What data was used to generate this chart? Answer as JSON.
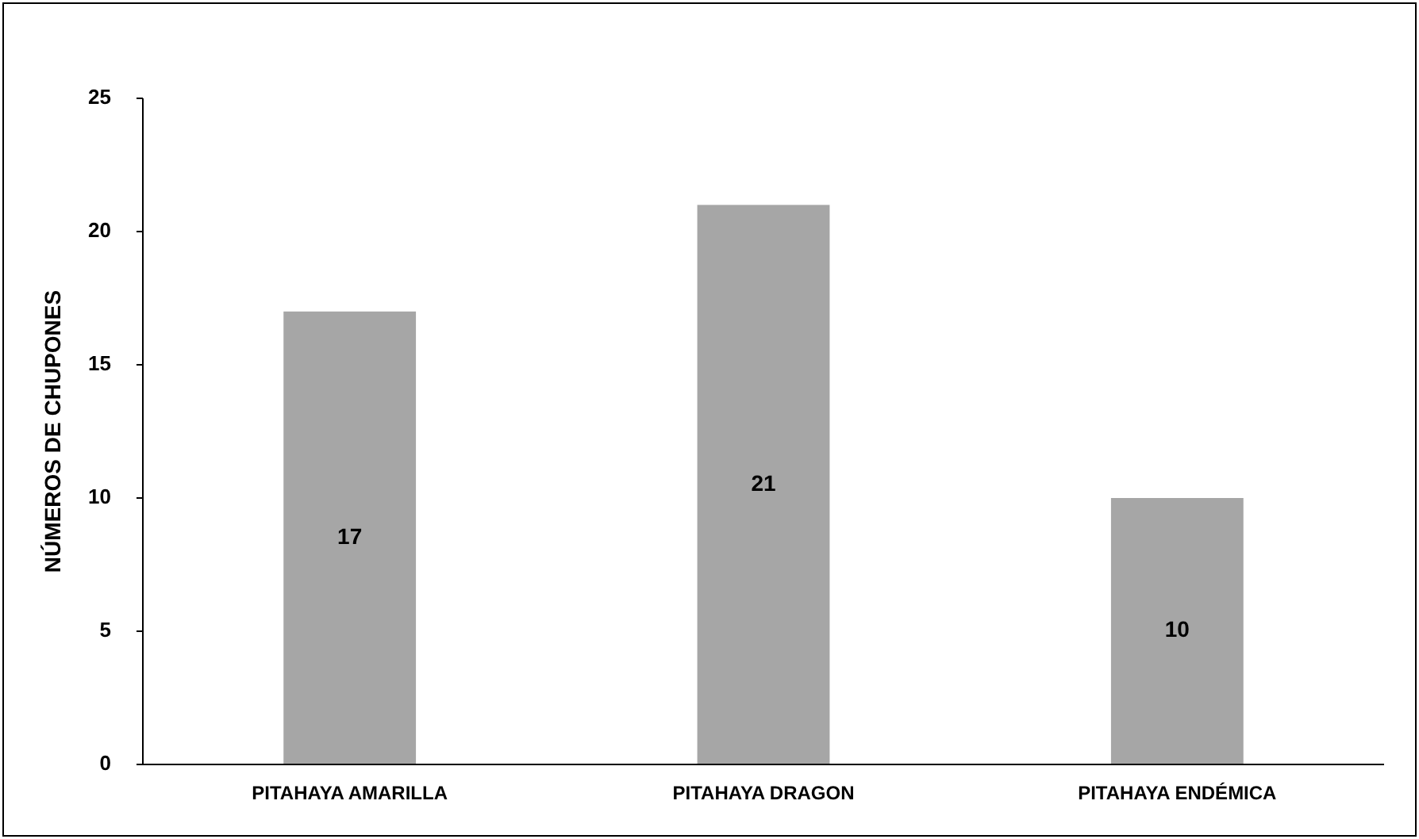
{
  "chart_data": {
    "type": "bar",
    "ylabel": "NÚMEROS DE CHUPONES",
    "categories": [
      "PITAHAYA AMARILLA",
      "PITAHAYA DRAGON",
      "PITAHAYA ENDÉMICA"
    ],
    "values": [
      17,
      21,
      10
    ],
    "color": "#a6a6a6",
    "ylim": [
      0,
      25
    ],
    "yticks": [
      0,
      5,
      10,
      15,
      20,
      25
    ],
    "grid": false,
    "data_labels": true
  }
}
